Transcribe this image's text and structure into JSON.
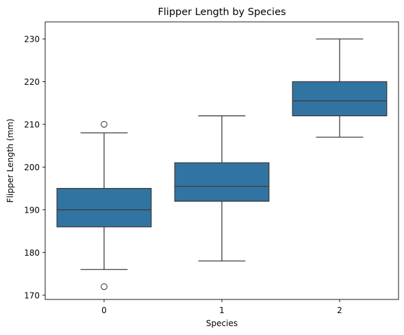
{
  "chart_data": {
    "type": "box",
    "title": "Flipper Length by Species",
    "xlabel": "Species",
    "ylabel": "Flipper Length (mm)",
    "ylim": [
      169,
      234
    ],
    "yticks": [
      170,
      180,
      190,
      200,
      210,
      220,
      230
    ],
    "categories": [
      "0",
      "1",
      "2"
    ],
    "box_color": "#3274a1",
    "line_color": "#3d3d3d",
    "boxes": [
      {
        "category": "0",
        "whisker_low": 176,
        "q1": 186,
        "median": 190,
        "q3": 195,
        "whisker_high": 208,
        "outliers": [
          210,
          172
        ]
      },
      {
        "category": "1",
        "whisker_low": 178,
        "q1": 192,
        "median": 195.5,
        "q3": 201,
        "whisker_high": 212,
        "outliers": []
      },
      {
        "category": "2",
        "whisker_low": 207,
        "q1": 212,
        "median": 215.5,
        "q3": 220,
        "whisker_high": 230,
        "outliers": []
      }
    ]
  }
}
